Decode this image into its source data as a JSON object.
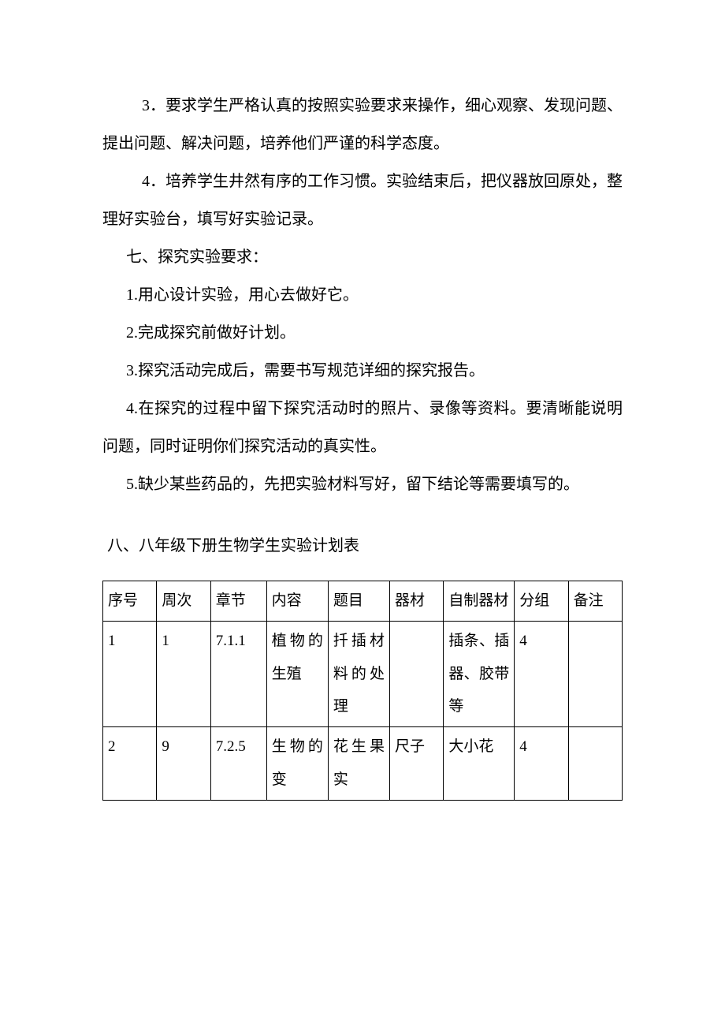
{
  "paragraphs": {
    "p3": "3．要求学生严格认真的按照实验要求来操作，细心观察、发现问题、提出问题、解决问题，培养他们严谨的科学态度。",
    "p4": "4．培养学生井然有序的工作习惯。实验结束后，把仪器放回原处，整理好实验台，填写好实验记录。",
    "sec7_title": "七、探究实验要求：",
    "sec7_1": "1.用心设计实验，用心去做好它。",
    "sec7_2": "2.完成探究前做好计划。",
    "sec7_3": "3.探究活动完成后，需要书写规范详细的探究报告。",
    "sec7_4": "4.在探究的过程中留下探究活动时的照片、录像等资料。要清晰能说明问题，同时证明你们探究活动的真实性。",
    "sec7_5": "5.缺少某些药品的，先把实验材料写好，留下结论等需要填写的。"
  },
  "section8_title": "八、八年级下册生物学生实验计划表",
  "table": {
    "headers": [
      "序号",
      "周次",
      "章节",
      "内容",
      "题目",
      "器材",
      "自制器材",
      "分组",
      "备注"
    ],
    "rows": [
      [
        "1",
        "1",
        "7.1.1",
        "植物的生殖",
        "扦插材料的处理",
        "",
        "插条、插器、胶带等",
        "4",
        ""
      ],
      [
        "2",
        "9",
        "7.2.5",
        "生物的变",
        "花生果实",
        "尺子",
        "大小花",
        "4",
        ""
      ]
    ],
    "column_widths_pct": [
      9.8,
      9.8,
      10.2,
      11.2,
      11.2,
      9.8,
      12.9,
      9.8,
      9.8
    ],
    "border_color": "#000000",
    "font_size_pt": 15,
    "text_align": "left",
    "vertical_align": "top"
  },
  "typography": {
    "body_font_family": "SimSun",
    "body_font_size_pt": 15,
    "body_line_height": 2.4,
    "text_color": "#000000",
    "background_color": "#ffffff"
  }
}
